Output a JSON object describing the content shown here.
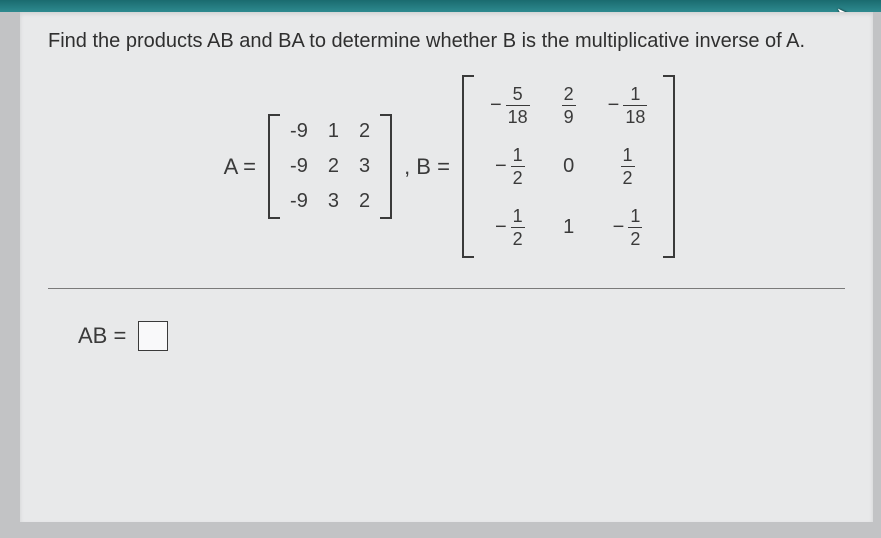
{
  "prompt": "Find the products AB and BA to determine whether B is the multiplicative inverse of A.",
  "labels": {
    "A_eq": "A =",
    "comma_B_eq": ", B =",
    "AB_eq": "AB ="
  },
  "matrixA": {
    "rows": [
      [
        "-9",
        "1",
        "2"
      ],
      [
        "-9",
        "2",
        "3"
      ],
      [
        "-9",
        "3",
        "2"
      ]
    ]
  },
  "matrixB": {
    "rows": [
      [
        {
          "neg": true,
          "num": "5",
          "den": "18"
        },
        {
          "neg": false,
          "num": "2",
          "den": "9"
        },
        {
          "neg": true,
          "num": "1",
          "den": "18"
        }
      ],
      [
        {
          "neg": true,
          "num": "1",
          "den": "2"
        },
        {
          "plain": "0"
        },
        {
          "neg": false,
          "num": "1",
          "den": "2"
        }
      ],
      [
        {
          "neg": true,
          "num": "1",
          "den": "2"
        },
        {
          "plain": "1"
        },
        {
          "neg": true,
          "num": "1",
          "den": "2"
        }
      ]
    ]
  },
  "colors": {
    "page_bg": "#e8e9ea",
    "body_bg": "#c2c3c5",
    "text": "#3a3a3a",
    "topbar": "#2e8a8f"
  },
  "font_sizes": {
    "prompt": 20,
    "equation": 22,
    "matrix_cell": 20,
    "fraction": 18
  }
}
